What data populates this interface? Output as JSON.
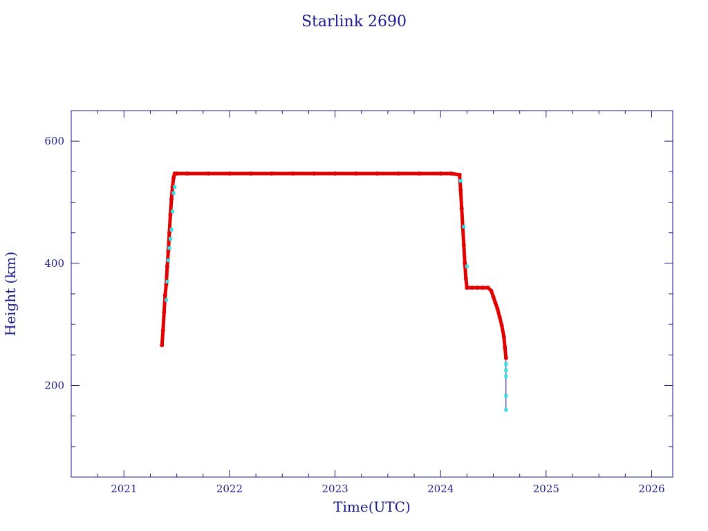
{
  "chart_data": {
    "type": "scatter",
    "title": "Starlink 2690",
    "xlabel": "Time(UTC)",
    "ylabel": "Height (km)",
    "xlim": [
      2020.5,
      2026.2
    ],
    "ylim": [
      50,
      650
    ],
    "x_ticks": [
      "2021",
      "2022",
      "2023",
      "2024",
      "2025",
      "2026"
    ],
    "y_ticks": [
      "200",
      "400",
      "600"
    ],
    "grid": false,
    "colors": {
      "axis": "#1a1a8c",
      "main_series": "#e00000",
      "secondary_series": "#33e0e8",
      "line": "#1a1a8c"
    },
    "series": [
      {
        "style": "red",
        "x": [
          2021.36,
          2021.37,
          2021.38,
          2021.39,
          2021.4,
          2021.41,
          2021.42,
          2021.43,
          2021.44,
          2021.45,
          2021.46,
          2021.47,
          2021.48,
          2021.5,
          2021.6,
          2021.8,
          2022.0,
          2022.2,
          2022.4,
          2022.6,
          2022.8,
          2023.0,
          2023.2,
          2023.4,
          2023.6,
          2023.8,
          2024.0,
          2024.1,
          2024.18,
          2024.19,
          2024.2,
          2024.21,
          2024.22,
          2024.23,
          2024.24,
          2024.25,
          2024.3,
          2024.35,
          2024.4,
          2024.45,
          2024.48,
          2024.5,
          2024.52,
          2024.54,
          2024.56,
          2024.58,
          2024.6,
          2024.61,
          2024.62
        ],
        "y": [
          266,
          290,
          320,
          348,
          365,
          395,
          420,
          450,
          480,
          505,
          525,
          540,
          547,
          547,
          547,
          547,
          547,
          547,
          547,
          547,
          547,
          547,
          547,
          547,
          547,
          547,
          547,
          547,
          545,
          520,
          490,
          460,
          430,
          400,
          375,
          360,
          360,
          360,
          360,
          360,
          355,
          345,
          335,
          325,
          312,
          298,
          280,
          262,
          245
        ]
      },
      {
        "style": "cyan",
        "x": [
          2021.4,
          2021.41,
          2021.42,
          2021.43,
          2021.44,
          2021.45,
          2021.46,
          2021.47,
          2021.48,
          2024.19,
          2024.22,
          2024.25,
          2024.62,
          2024.62,
          2024.62,
          2024.62,
          2024.62
        ],
        "y": [
          340,
          370,
          405,
          425,
          440,
          455,
          485,
          515,
          525,
          535,
          460,
          395,
          235,
          225,
          215,
          183,
          160
        ]
      }
    ]
  }
}
